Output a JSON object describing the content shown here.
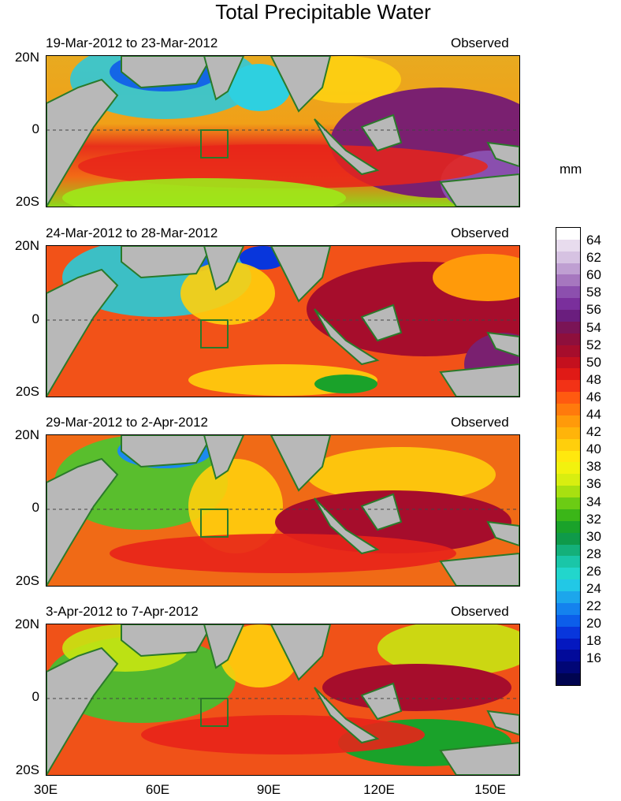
{
  "title": "Total Precipitable Water",
  "units": "mm",
  "panels": [
    {
      "date_range": "19-Mar-2012 to 23-Mar-2012",
      "tag": "Observed"
    },
    {
      "date_range": "24-Mar-2012 to 28-Mar-2012",
      "tag": "Observed"
    },
    {
      "date_range": "29-Mar-2012 to 2-Apr-2012",
      "tag": "Observed"
    },
    {
      "date_range": "3-Apr-2012 to 7-Apr-2012",
      "tag": "Observed"
    }
  ],
  "y_labels": [
    "20N",
    "0",
    "20S"
  ],
  "x_labels": [
    "30E",
    "60E",
    "90E",
    "120E",
    "150E"
  ],
  "colorbar_labels": [
    "64",
    "62",
    "60",
    "58",
    "56",
    "54",
    "52",
    "50",
    "48",
    "46",
    "44",
    "42",
    "40",
    "38",
    "36",
    "34",
    "32",
    "30",
    "28",
    "26",
    "24",
    "22",
    "20",
    "18",
    "16"
  ],
  "colorbar_colors": [
    "#ffffff",
    "#e8dcee",
    "#d6c2e2",
    "#bf9fd2",
    "#a677bf",
    "#8c4fae",
    "#7a2f9c",
    "#6a1e7e",
    "#7a1456",
    "#8e0f3c",
    "#a60d2c",
    "#c4101e",
    "#e01a16",
    "#f23216",
    "#ff5a10",
    "#ff7a0c",
    "#ff9a0a",
    "#ffb40a",
    "#ffcf0c",
    "#ffe80e",
    "#f2f20e",
    "#d8ee10",
    "#a8e010",
    "#6ccc14",
    "#3bb618",
    "#1aa22a",
    "#0f9a4a",
    "#14b07a",
    "#1ac6a8",
    "#22d6cc",
    "#22c8e6",
    "#1ca6ec",
    "#1482ee",
    "#0c5eea",
    "#0836dc",
    "#0418c0",
    "#020a9a",
    "#010676",
    "#000450"
  ]
}
